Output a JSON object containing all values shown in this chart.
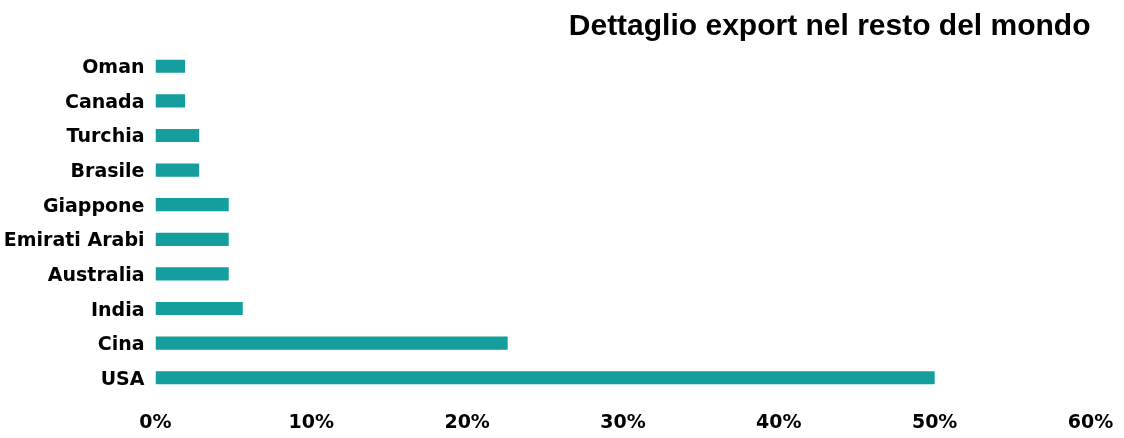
{
  "chart_data": {
    "type": "bar",
    "orientation": "horizontal",
    "title": "Dettaglio export nel resto del mondo",
    "categories": [
      "Oman",
      "Canada",
      "Turchia",
      "Brasile",
      "Giappone",
      "Emirati Arabi",
      "Australia",
      "India",
      "Cina",
      "USA"
    ],
    "values": [
      1.9,
      1.9,
      2.8,
      2.8,
      4.7,
      4.7,
      4.7,
      5.6,
      22.6,
      50
    ],
    "color": "#159e9e",
    "xlim": [
      0,
      60
    ],
    "xticks": [
      {
        "value": 0,
        "label": "0%"
      },
      {
        "value": 10,
        "label": "10%"
      },
      {
        "value": 20,
        "label": "20%"
      },
      {
        "value": 30,
        "label": "30%"
      },
      {
        "value": 40,
        "label": "40%"
      },
      {
        "value": 50,
        "label": "50%"
      },
      {
        "value": 60,
        "label": "60%"
      }
    ],
    "grid": false
  }
}
